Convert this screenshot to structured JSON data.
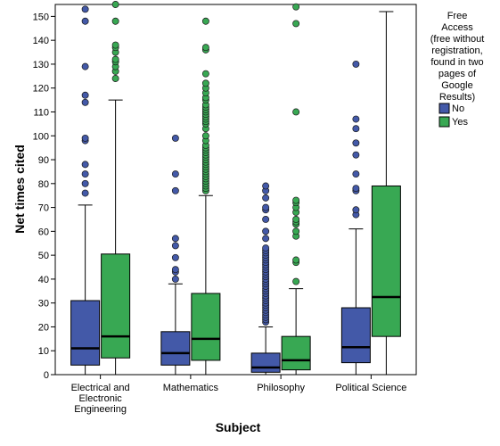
{
  "chart_data": {
    "type": "boxplot",
    "xlabel": "Subject",
    "ylabel": "Net times cited",
    "ylim": [
      0,
      155
    ],
    "yticks": [
      0,
      10,
      20,
      30,
      40,
      50,
      60,
      70,
      80,
      90,
      100,
      110,
      120,
      130,
      140,
      150
    ],
    "categories": [
      [
        "Electrical and",
        "Electronic",
        "Engineering"
      ],
      [
        "Mathematics"
      ],
      [
        "Philosophy"
      ],
      [
        "Political Science"
      ]
    ],
    "legend": {
      "title": [
        "Free",
        "Access",
        "(free without",
        "registration,",
        "found in two",
        "pages of",
        "Google",
        "Results)"
      ],
      "placement": "right"
    },
    "series": [
      {
        "name": "No",
        "color": "#4359a8",
        "boxes": [
          {
            "whisker_low": 0,
            "q1": 4,
            "median": 11,
            "q3": 31,
            "whisker_high": 71,
            "outliers": [
              76,
              80,
              84,
              88,
              98,
              99,
              114,
              117,
              129,
              148,
              153
            ]
          },
          {
            "whisker_low": 0,
            "q1": 4,
            "median": 9,
            "q3": 18,
            "whisker_high": 38,
            "outliers": [
              40,
              43,
              44,
              49,
              54,
              57,
              77,
              84,
              99
            ]
          },
          {
            "whisker_low": 0,
            "q1": 1,
            "median": 3,
            "q3": 9,
            "whisker_high": 20,
            "outliers": [
              22,
              23,
              24,
              25,
              26,
              27,
              28,
              29,
              30,
              31,
              32,
              33,
              34,
              35,
              36,
              37,
              38,
              39,
              40,
              41,
              42,
              43,
              44,
              45,
              46,
              47,
              48,
              49,
              50,
              51,
              52,
              53,
              57,
              60,
              65,
              69,
              70,
              74,
              77,
              79
            ]
          },
          {
            "whisker_low": 0,
            "q1": 5,
            "median": 11.5,
            "q3": 28,
            "whisker_high": 61,
            "outliers": [
              67,
              69,
              77,
              78,
              84,
              92,
              97,
              103,
              107,
              130
            ]
          }
        ]
      },
      {
        "name": "Yes",
        "color": "#38a853",
        "boxes": [
          {
            "whisker_low": 0,
            "q1": 7,
            "median": 16,
            "q3": 50.5,
            "whisker_high": 115,
            "outliers": [
              124,
              127,
              129,
              131,
              132,
              135,
              137,
              138,
              148,
              155
            ]
          },
          {
            "whisker_low": 0,
            "q1": 6,
            "median": 15,
            "q3": 34,
            "whisker_high": 75,
            "outliers": [
              77,
              78,
              79,
              80,
              81,
              82,
              83,
              84,
              85,
              86,
              87,
              88,
              89,
              90,
              91,
              92,
              93,
              94,
              95,
              96,
              98,
              100,
              103,
              105,
              106,
              107,
              108,
              109,
              110,
              111,
              112,
              113,
              115,
              116,
              118,
              120,
              122,
              126,
              136,
              137,
              148
            ]
          },
          {
            "whisker_low": 0,
            "q1": 2,
            "median": 6,
            "q3": 16,
            "whisker_high": 36,
            "outliers": [
              39,
              47,
              48,
              58,
              60,
              63,
              64,
              65,
              68,
              70,
              72,
              73,
              110,
              147,
              154
            ]
          },
          {
            "whisker_low": 0,
            "q1": 16,
            "median": 32.5,
            "q3": 79,
            "whisker_high": 152,
            "outliers": []
          }
        ]
      }
    ],
    "grid": false
  }
}
